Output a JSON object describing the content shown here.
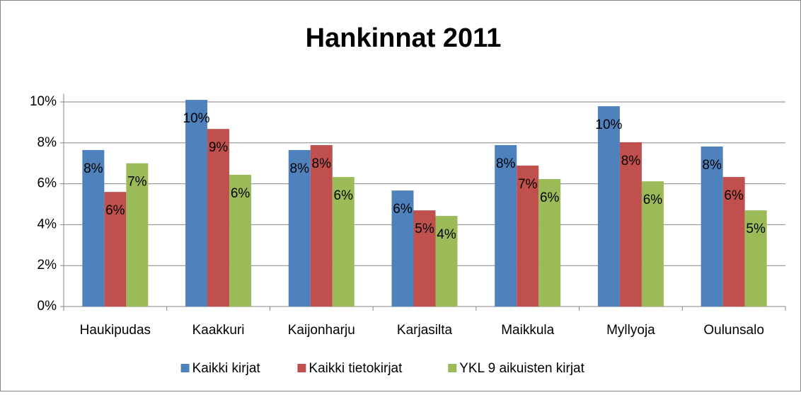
{
  "chart_data": {
    "type": "bar",
    "title": "Hankinnat 2011",
    "categories": [
      "Haukipudas",
      "Kaakkuri",
      "Kaijonharju",
      "Karjasilta",
      "Maikkula",
      "Myllyoja",
      "Oulunsalo"
    ],
    "series": [
      {
        "name": "Kaikki kirjat",
        "color": "#4f81bd",
        "values": [
          7.65,
          10.1,
          7.65,
          5.67,
          7.89,
          9.79,
          7.82
        ],
        "value_labels": [
          "8%",
          "10%",
          "8%",
          "6%",
          "8%",
          "10%",
          "8%"
        ]
      },
      {
        "name": "Kaikki tietokirjat",
        "color": "#c0504d",
        "values": [
          5.6,
          8.68,
          7.89,
          4.7,
          6.89,
          8.03,
          6.33
        ],
        "value_labels": [
          "6%",
          "9%",
          "8%",
          "5%",
          "7%",
          "8%",
          "6%"
        ]
      },
      {
        "name": "YKL 9 aikuisten kirjat",
        "color": "#9bbb59",
        "values": [
          7.0,
          6.44,
          6.33,
          4.43,
          6.23,
          6.12,
          4.7
        ],
        "value_labels": [
          "7%",
          "6%",
          "6%",
          "4%",
          "6%",
          "6%",
          "5%"
        ]
      }
    ],
    "ylim": [
      0,
      10.4
    ],
    "yticks": [
      {
        "value": 0,
        "label": "0%"
      },
      {
        "value": 2,
        "label": "2%"
      },
      {
        "value": 4,
        "label": "4%"
      },
      {
        "value": 6,
        "label": "6%"
      },
      {
        "value": 8,
        "label": "8%"
      },
      {
        "value": 10,
        "label": "10%"
      }
    ],
    "grid": true,
    "legend": "bottom"
  }
}
